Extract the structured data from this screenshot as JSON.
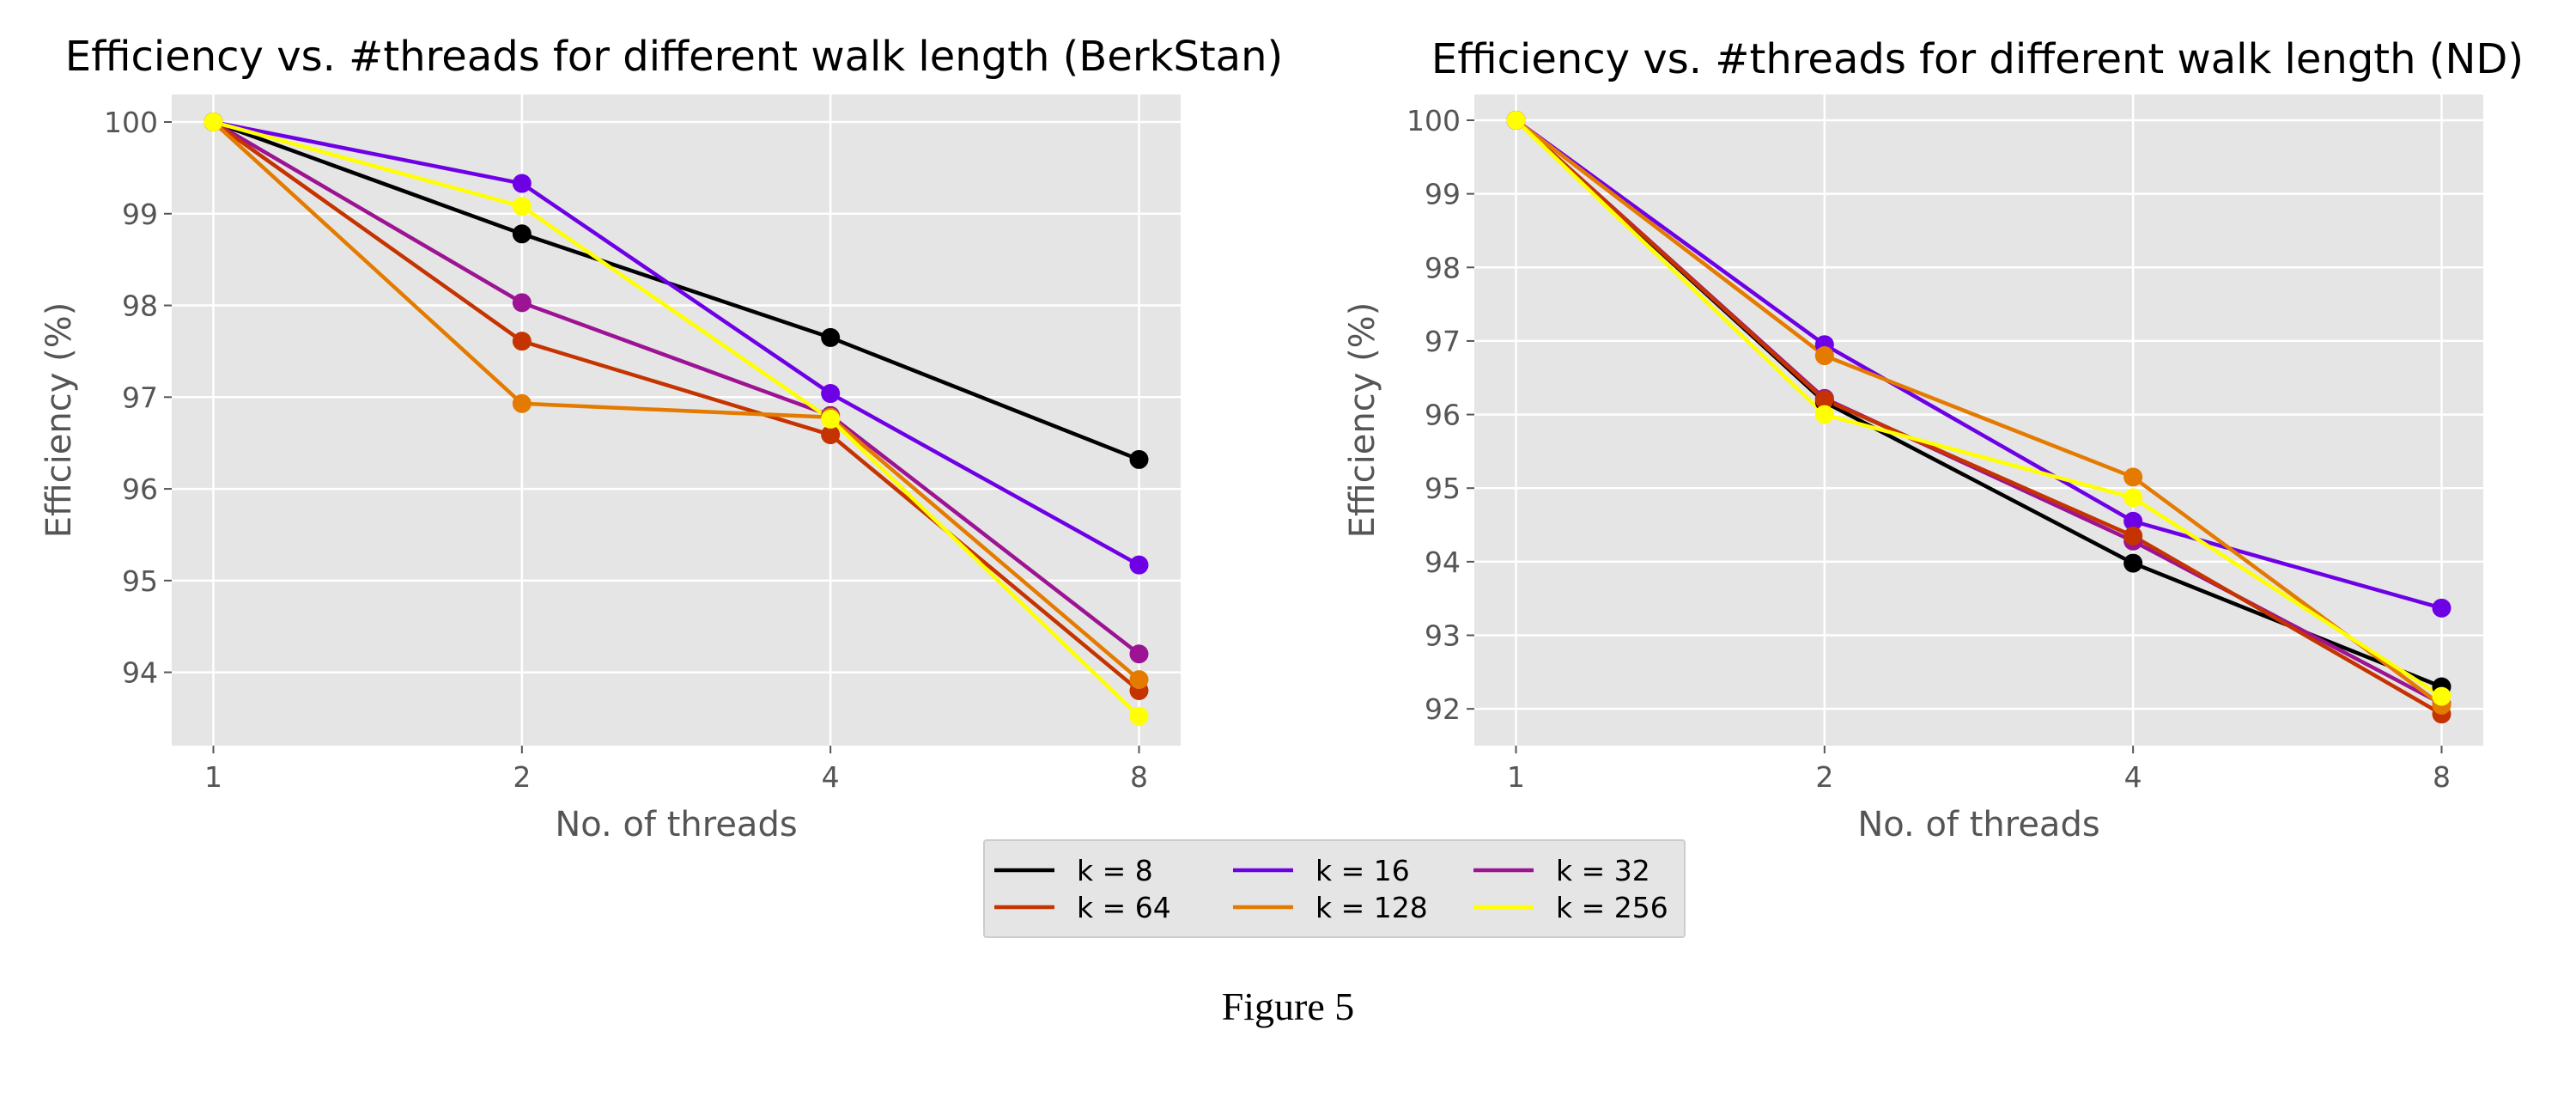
{
  "figure_caption": "Figure 5",
  "chart_data": [
    {
      "type": "line",
      "title": "Efficiency vs. #threads for different walk length (BerkStan)",
      "xlabel": "No. of threads",
      "ylabel": "Efficiency (%)",
      "x": [
        1,
        2,
        4,
        8
      ],
      "x_ticks": [
        "1",
        "2",
        "4",
        "8"
      ],
      "x_scale": "log2",
      "ylim": [
        93.2,
        100.3
      ],
      "y_ticks": [
        94,
        95,
        96,
        97,
        98,
        99,
        100
      ],
      "grid": true,
      "series": [
        {
          "name": "k = 8",
          "color": "#000000",
          "values": [
            100,
            98.78,
            97.65,
            96.32
          ]
        },
        {
          "name": "k = 16",
          "color": "#6e00e6",
          "values": [
            100,
            99.33,
            97.04,
            95.17
          ]
        },
        {
          "name": "k = 32",
          "color": "#9c1493",
          "values": [
            100,
            98.03,
            96.8,
            94.2
          ]
        },
        {
          "name": "k = 64",
          "color": "#c53300",
          "values": [
            100,
            97.61,
            96.59,
            93.8
          ]
        },
        {
          "name": "k = 128",
          "color": "#e47b00",
          "values": [
            100,
            96.93,
            96.78,
            93.92
          ]
        },
        {
          "name": "k = 256",
          "color": "#ffff00",
          "values": [
            100,
            99.08,
            96.76,
            93.52
          ]
        }
      ]
    },
    {
      "type": "line",
      "title": "Efficiency vs. #threads for different walk length (ND)",
      "xlabel": "No. of threads",
      "ylabel": "Efficiency (%)",
      "x": [
        1,
        2,
        4,
        8
      ],
      "x_ticks": [
        "1",
        "2",
        "4",
        "8"
      ],
      "x_scale": "log2",
      "ylim": [
        91.5,
        100.35
      ],
      "y_ticks": [
        92,
        93,
        94,
        95,
        96,
        97,
        98,
        99,
        100
      ],
      "grid": true,
      "series": [
        {
          "name": "k = 8",
          "color": "#000000",
          "values": [
            100,
            96.17,
            93.98,
            92.3
          ]
        },
        {
          "name": "k = 16",
          "color": "#6e00e6",
          "values": [
            100,
            96.95,
            94.55,
            93.37
          ]
        },
        {
          "name": "k = 32",
          "color": "#9c1493",
          "values": [
            100,
            96.22,
            94.28,
            92.07
          ]
        },
        {
          "name": "k = 64",
          "color": "#c53300",
          "values": [
            100,
            96.2,
            94.35,
            91.93
          ]
        },
        {
          "name": "k = 128",
          "color": "#e47b00",
          "values": [
            100,
            96.8,
            95.15,
            92.05
          ]
        },
        {
          "name": "k = 256",
          "color": "#ffff00",
          "values": [
            100,
            96.0,
            94.87,
            92.17
          ]
        }
      ]
    }
  ],
  "legend": {
    "placement": "bottom-center",
    "columns": 3,
    "entries": [
      {
        "label": "k = 8",
        "color": "#000000"
      },
      {
        "label": "k = 16",
        "color": "#6e00e6"
      },
      {
        "label": "k = 32",
        "color": "#9c1493"
      },
      {
        "label": "k = 64",
        "color": "#c53300"
      },
      {
        "label": "k = 128",
        "color": "#e47b00"
      },
      {
        "label": "k = 256",
        "color": "#ffff00"
      }
    ]
  }
}
